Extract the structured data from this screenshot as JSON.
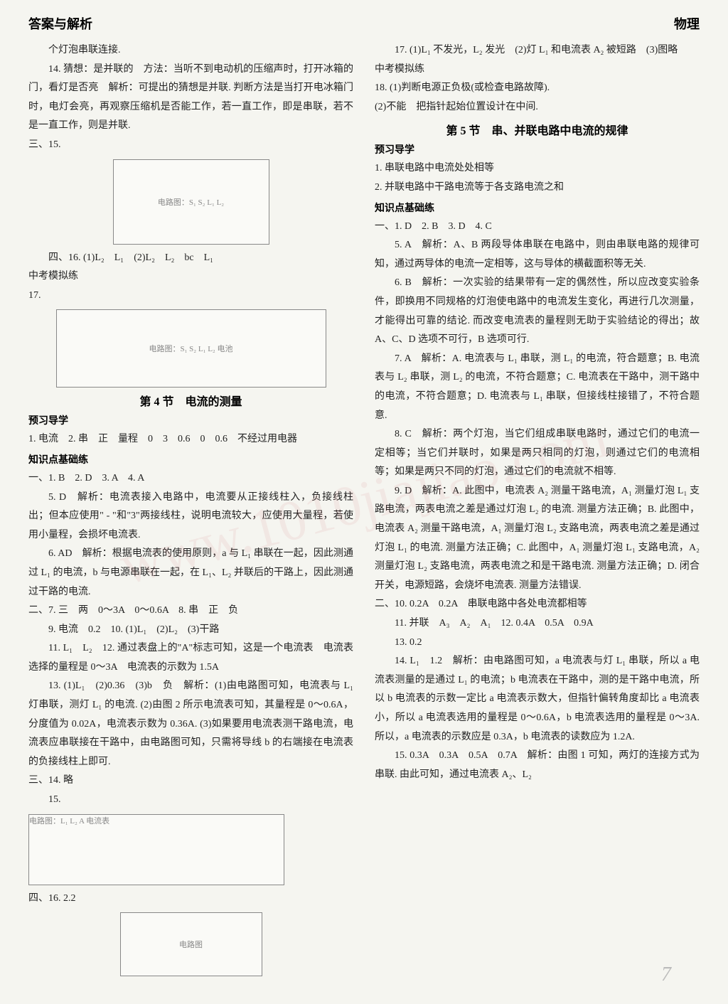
{
  "header": {
    "left": "答案与解析",
    "right": "物理"
  },
  "watermark": "www.1010jiajiao.com",
  "page_number": "7",
  "left_column": {
    "p1": "个灯泡串联连接.",
    "p2": "14. 猜想：是并联的　方法：当听不到电动机的压缩声时，打开冰箱的门，看灯是否亮　解析：可提出的猜想是并联. 判断方法是当打开电冰箱门时，电灯会亮，再观察压缩机是否能工作，若一直工作，即是串联，若不是一直工作，则是并联.",
    "p3": "三、15.",
    "fig15_alt": "电路图：S₁ S₂ L₁ L₂",
    "p4": "四、16. (1)L₂　L₁　(2)L₂　L₂　bc　L₁",
    "p5": "中考模拟练",
    "p6": "17.",
    "fig17_alt": "电路图：S₁ S₂ L₁ L₂ 电池",
    "section4_title": "第 4 节　电流的测量",
    "yuxi_label": "预习导学",
    "p7": "1. 电流　2. 串　正　量程　0　3　0.6　0　0.6　不经过用电器",
    "zhishi_label": "知识点基础练",
    "p8": "一、1. B　2. D　3. A　4. A",
    "p9": "5. D　解析：电流表接入电路中，电流要从正接线柱入，负接线柱出；但本应使用\" - \"和\"3\"两接线柱，说明电流较大，应使用大量程，若使用小量程，会损坏电流表.",
    "p10": "6. AD　解析：根据电流表的使用原则，a 与 L₁ 串联在一起，因此测通过 L₁ 的电流，b 与电源串联在一起，在 L₁、L₂ 并联后的干路上，因此测通过干路的电流.",
    "p11": "二、7. 三　两　0～3A　0～0.6A　8. 串　正　负",
    "p12": "9. 电流　0.2　10. (1)L₁　(2)L₂　(3)干路",
    "p13": "11. L₁　L₂　12. 通过表盘上的\"A\"标志可知，这是一个电流表　电流表选择的量程是 0～3A　电流表的示数为 1.5A",
    "p14": "13. (1)L₁　(2)0.36　(3)b　负　解析：(1)由电路图可知，电流表与 L₁ 灯串联，测灯 L₁ 的电流. (2)由图 2 所示电流表可知，其量程是 0～0.6A，分度值为 0.02A，电流表示数为 0.36A. (3)如果要用电流表测干路电流，电流表应串联接在干路中，由电路图可知，只需将导线 b 的右端接在电流表的负接线柱上即可.",
    "p15": "三、14. 略",
    "p16": "15.",
    "fig_bottom15_alt": "电路图：L₁ L₂ A 电流表",
    "p17": "四、16. 2.2",
    "fig16_alt": "电路图"
  },
  "right_column": {
    "p1": "17. (1)L₁ 不发光，L₂ 发光　(2)灯 L₁ 和电流表 A₂ 被短路　(3)图略",
    "mock_label": "中考模拟练",
    "p2": "18. (1)判断电源正负极(或检查电路故障).",
    "p3": "(2)不能　把指针起始位置设计在中间.",
    "section5_title": "第 5 节　串、并联电路中电流的规律",
    "yuxi_label": "预习导学",
    "p4": "1. 串联电路中电流处处相等",
    "p5": "2. 并联电路中干路电流等于各支路电流之和",
    "zhishi_label": "知识点基础练",
    "p6": "一、1. D　2. B　3. D　4. C",
    "p7": "5. A　解析：A、B 两段导体串联在电路中，则由串联电路的规律可知，通过两导体的电流一定相等，这与导体的横截面积等无关.",
    "p8": "6. B　解析：一次实验的结果带有一定的偶然性，所以应改变实验条件，即换用不同规格的灯泡使电路中的电流发生变化，再进行几次测量，才能得出可靠的结论. 而改变电流表的量程则无助于实验结论的得出；故 A、C、D 选项不可行，B 选项可行.",
    "p9": "7. A　解析：A. 电流表与 L₁ 串联，测 L₁ 的电流，符合题意；B. 电流表与 L₂ 串联，测 L₂ 的电流，不符合题意；C. 电流表在干路中，测干路中的电流，不符合题意；D. 电流表与 L₁ 串联，但接线柱接错了，不符合题意.",
    "p10": "8. C　解析：两个灯泡，当它们组成串联电路时，通过它们的电流一定相等；当它们并联时，如果是两只相同的灯泡，则通过它们的电流相等；如果是两只不同的灯泡，通过它们的电流就不相等.",
    "p11": "9. D　解析：A. 此图中，电流表 A₂ 测量干路电流，A₁ 测量灯泡 L₁ 支路电流，两表电流之差是通过灯泡 L₂ 的电流. 测量方法正确；B. 此图中，电流表 A₂ 测量干路电流，A₁ 测量灯泡 L₂ 支路电流，两表电流之差是通过灯泡 L₁ 的电流. 测量方法正确；C. 此图中，A₁ 测量灯泡 L₁ 支路电流，A₂ 测量灯泡 L₂ 支路电流，两表电流之和是干路电流. 测量方法正确；D. 闭合开关，电源短路，会烧坏电流表. 测量方法错误.",
    "p12": "二、10. 0.2A　0.2A　串联电路中各处电流都相等",
    "p13": "11. 并联　A₃　A₂　A₁　12. 0.4A　0.5A　0.9A",
    "p14": "13. 0.2",
    "p15": "14. L₁　1.2　解析：由电路图可知，a 电流表与灯 L₁ 串联，所以 a 电流表测量的是通过 L₁ 的电流；b 电流表在干路中，测的是干路中电流，所以 b 电流表的示数一定比 a 电流表示数大，但指针偏转角度却比 a 电流表小，所以 a 电流表选用的量程是 0～0.6A，b 电流表选用的量程是 0～3A. 所以，a 电流表的示数应是 0.3A，b 电流表的读数应为 1.2A.",
    "p16": "15. 0.3A　0.3A　0.5A　0.7A　解析：由图 1 可知，两灯的连接方式为串联. 由此可知，通过电流表 A₂、L₂"
  }
}
